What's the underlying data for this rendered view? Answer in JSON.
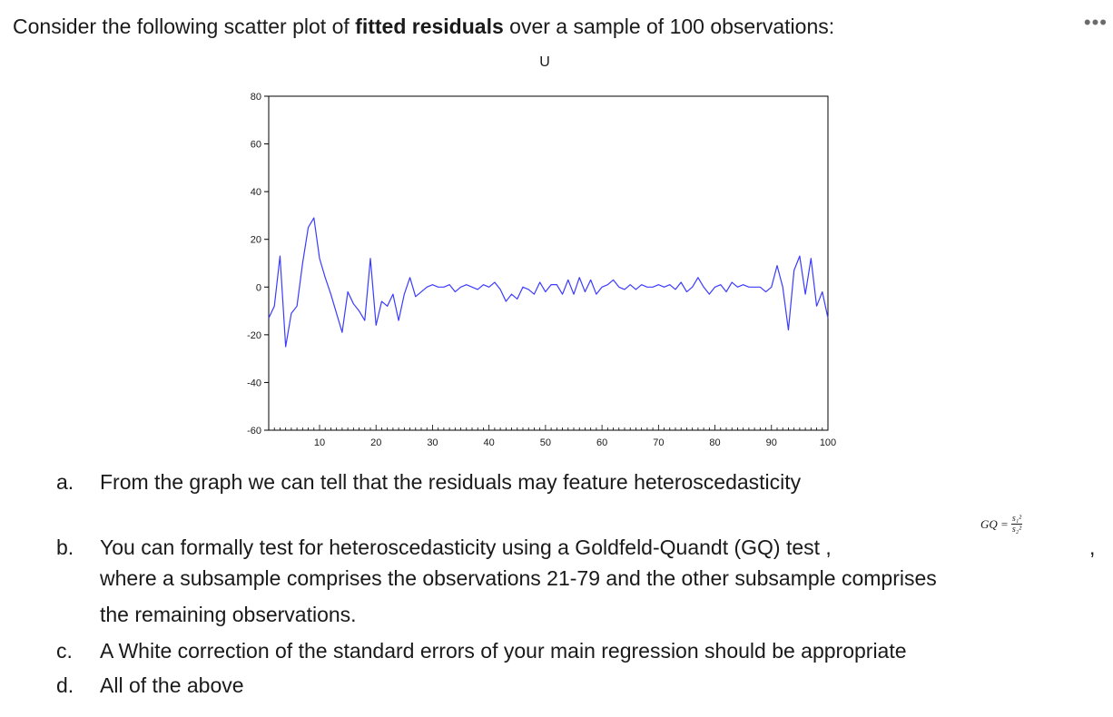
{
  "toolbar": {
    "more_icon": "more-horizontal-icon",
    "more_glyph": "•••"
  },
  "question": {
    "text_before": "Consider the following scatter plot of ",
    "text_bold": "fitted residuals",
    "text_after": " over a sample of 100 observations:"
  },
  "chart_data": {
    "type": "line",
    "title": "U",
    "xlabel": "",
    "ylabel": "",
    "xlim": [
      1,
      100
    ],
    "ylim": [
      -60,
      80
    ],
    "x_ticks": [
      10,
      20,
      30,
      40,
      50,
      60,
      70,
      80,
      90,
      100
    ],
    "y_ticks": [
      80,
      60,
      40,
      20,
      0,
      -20,
      -40,
      -60
    ],
    "grid": false,
    "line_color": "#3b3bff",
    "series": [
      {
        "values": [
          -13,
          -8,
          13,
          -25,
          -11,
          -8,
          10,
          25,
          29,
          12,
          4,
          -3,
          -11,
          -19,
          -2,
          -7,
          -10,
          -14,
          12,
          -16,
          -6,
          -8,
          -3,
          -14,
          -3,
          4,
          -4,
          -2,
          0,
          1,
          0,
          0,
          1,
          -2,
          0,
          1,
          0,
          -1,
          1,
          0,
          2,
          -1,
          -6,
          -3,
          -5,
          0,
          -1,
          -3,
          2,
          -2,
          1,
          1,
          -3,
          3,
          -3,
          4,
          -2,
          3,
          -3,
          0,
          1,
          3,
          0,
          -1,
          1,
          -1,
          1,
          0,
          0,
          1,
          0,
          1,
          -1,
          2,
          -2,
          0,
          4,
          0,
          -3,
          0,
          1,
          -2,
          2,
          0,
          1,
          0,
          0,
          0,
          -2,
          0,
          9,
          0,
          -18,
          7,
          13,
          -3,
          12,
          -8,
          -2,
          -13
        ]
      }
    ]
  },
  "options": [
    {
      "label": "a.",
      "text": "From the graph we can tell that the residuals may feature heteroscedasticity"
    },
    {
      "label": "b.",
      "text": "You can formally test for heteroscedasticity using a Goldfeld-Quandt (GQ) test ,"
    },
    {
      "label": "",
      "text": "where a subsample comprises the observations 21-79 and the other subsample comprises"
    },
    {
      "label": "",
      "text": "the remaining observations."
    },
    {
      "label": "c.",
      "text": "A White correction of the standard errors of your main regression should be appropriate"
    },
    {
      "label": "d.",
      "text": "All of the above"
    }
  ],
  "gq_formula": {
    "lhs": "GQ =",
    "numerator": "s₁²",
    "denominator": "s₂²",
    "trailing": ","
  }
}
